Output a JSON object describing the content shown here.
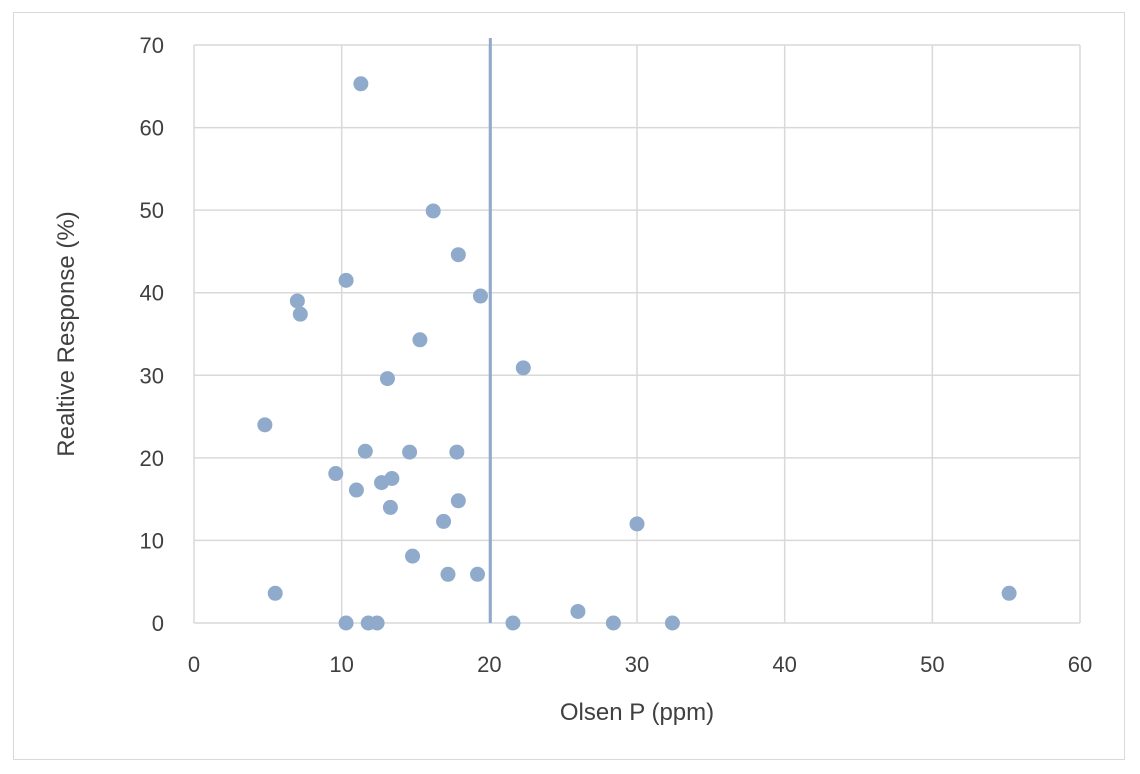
{
  "chart_data": {
    "type": "scatter",
    "xlabel": "Olsen P (ppm)",
    "ylabel": "Realtive Response (%)",
    "xlim": [
      0,
      60
    ],
    "ylim": [
      0,
      70
    ],
    "x_ticks": [
      0,
      10,
      20,
      30,
      40,
      50,
      60
    ],
    "y_ticks": [
      0,
      10,
      20,
      30,
      40,
      50,
      60,
      70
    ],
    "grid": true,
    "legend": "none",
    "point_color": "#8faacb",
    "reference_line": {
      "orientation": "vertical",
      "x": 20,
      "color": "#8faacb"
    },
    "points": [
      {
        "x": 11.3,
        "y": 65.3
      },
      {
        "x": 16.2,
        "y": 49.9
      },
      {
        "x": 17.9,
        "y": 44.6
      },
      {
        "x": 10.3,
        "y": 41.5
      },
      {
        "x": 19.4,
        "y": 39.6
      },
      {
        "x": 7.0,
        "y": 39.0
      },
      {
        "x": 7.2,
        "y": 37.4
      },
      {
        "x": 15.3,
        "y": 34.3
      },
      {
        "x": 22.3,
        "y": 30.9
      },
      {
        "x": 13.1,
        "y": 29.6
      },
      {
        "x": 4.8,
        "y": 24.0
      },
      {
        "x": 11.6,
        "y": 20.8
      },
      {
        "x": 14.6,
        "y": 20.7
      },
      {
        "x": 17.8,
        "y": 20.7
      },
      {
        "x": 9.6,
        "y": 18.1
      },
      {
        "x": 13.4,
        "y": 17.5
      },
      {
        "x": 12.7,
        "y": 17.0
      },
      {
        "x": 11.0,
        "y": 16.1
      },
      {
        "x": 17.9,
        "y": 14.8
      },
      {
        "x": 13.3,
        "y": 14.0
      },
      {
        "x": 16.9,
        "y": 12.3
      },
      {
        "x": 30.0,
        "y": 12.0
      },
      {
        "x": 14.8,
        "y": 8.1
      },
      {
        "x": 17.2,
        "y": 5.9
      },
      {
        "x": 19.2,
        "y": 5.9
      },
      {
        "x": 5.5,
        "y": 3.6
      },
      {
        "x": 55.2,
        "y": 3.6
      },
      {
        "x": 26.0,
        "y": 1.4
      },
      {
        "x": 10.3,
        "y": 0.0
      },
      {
        "x": 11.8,
        "y": 0.0
      },
      {
        "x": 12.4,
        "y": 0.0
      },
      {
        "x": 21.6,
        "y": 0.0
      },
      {
        "x": 28.4,
        "y": 0.0
      },
      {
        "x": 32.4,
        "y": 0.0
      }
    ]
  }
}
